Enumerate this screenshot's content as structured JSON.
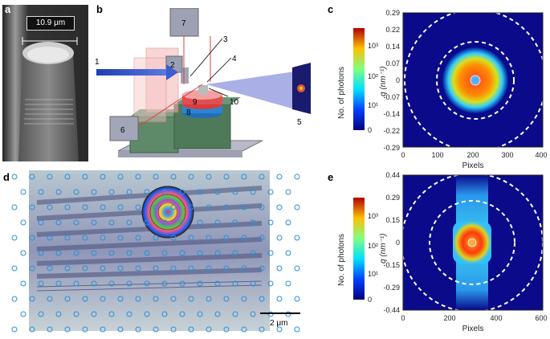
{
  "panels": {
    "a": {
      "label": "a",
      "scale_text": "10.9 μm"
    },
    "b": {
      "label": "b",
      "numbers": [
        "1",
        "2",
        "3",
        "4",
        "5",
        "6",
        "7",
        "8",
        "9",
        "10"
      ]
    },
    "c": {
      "label": "c",
      "colorbar_label": "No. of photons",
      "colorbar_ticks": [
        "10³",
        "10²",
        "10¹",
        "0"
      ],
      "ylabel": "q (nm⁻¹)",
      "xlabel": "Pixels",
      "yticks": [
        "0.29",
        "0.22",
        "0.14",
        "0.07",
        "0",
        "-0.07",
        "-0.14",
        "-0.22",
        "-0.29"
      ],
      "xticks": [
        "0",
        "100",
        "200",
        "300",
        "400"
      ]
    },
    "d": {
      "label": "d",
      "scale_text": "2 μm"
    },
    "e": {
      "label": "e",
      "colorbar_label": "No. of photons",
      "colorbar_ticks": [
        "10³",
        "10²",
        "10¹",
        "0"
      ],
      "ylabel": "q (nm⁻¹)",
      "xlabel": "Pixels",
      "yticks": [
        "0.44",
        "0.29",
        "0.15",
        "0",
        "-0.15",
        "-0.29",
        "-0.44"
      ],
      "xticks": [
        "0",
        "200",
        "400",
        "600"
      ]
    }
  }
}
